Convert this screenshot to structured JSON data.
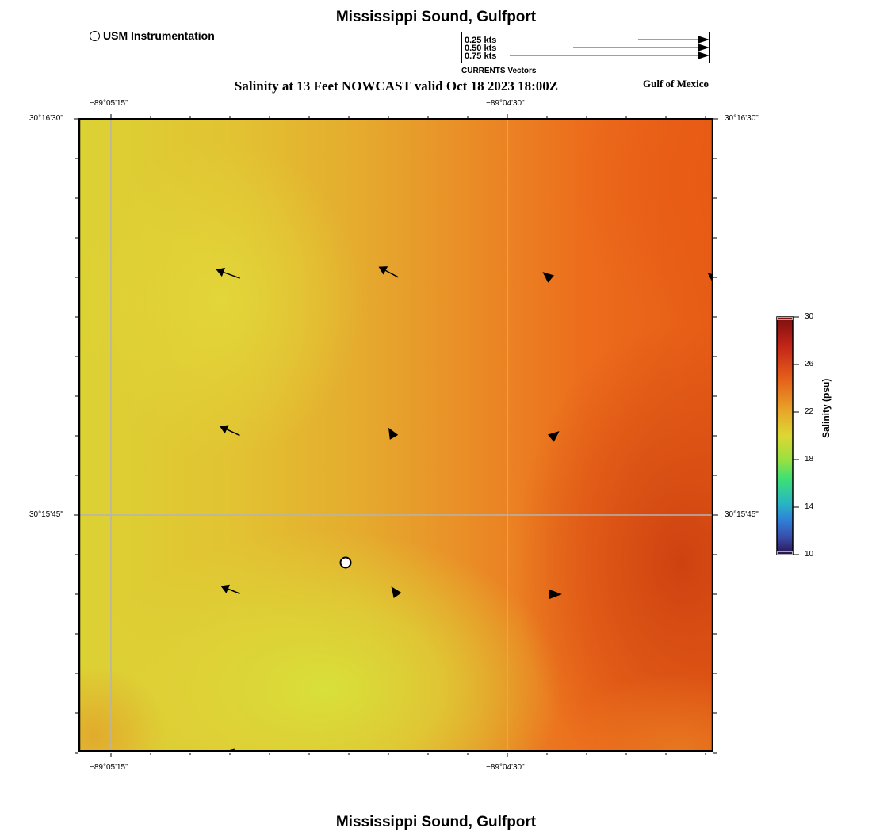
{
  "header": {
    "title": "Mississippi Sound, Gulfport",
    "subtitle": "Salinity at 13 Feet NOWCAST valid Oct 18 2023 18:00Z",
    "region": "Gulf of Mexico",
    "footer_title": "Mississippi Sound, Gulfport"
  },
  "marker_legend": {
    "label": "USM Instrumentation"
  },
  "vector_legend": {
    "title": "CURRENTS Vectors",
    "entries": [
      {
        "label": "0.25 kts",
        "speed": 0.25
      },
      {
        "label": "0.50 kts",
        "speed": 0.5
      },
      {
        "label": "0.75 kts",
        "speed": 0.75
      }
    ]
  },
  "map": {
    "longitude_labels": [
      "−89°05'15\"",
      "−89°04'30\""
    ],
    "latitude_labels": [
      "30°16'30\"",
      "30°15'45\""
    ]
  },
  "colorbar": {
    "title": "Salinity (psu)",
    "min": 10,
    "max": 30,
    "ticks": [
      "30",
      "26",
      "22",
      "18",
      "14",
      "10"
    ]
  }
}
